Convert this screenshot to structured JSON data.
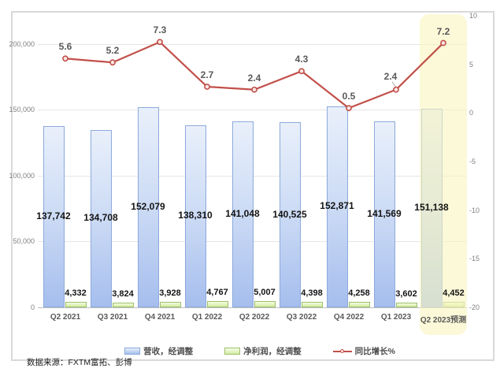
{
  "chart_data": {
    "type": "combo_bar_line",
    "categories": [
      "Q2 2021",
      "Q3 2021",
      "Q4 2021",
      "Q1 2022",
      "Q2 2022",
      "Q3 2022",
      "Q4 2022",
      "Q1 2023",
      "Q2 2023预测"
    ],
    "series": [
      {
        "name": "营收，经调整",
        "type": "bar",
        "axis": "left",
        "values": [
          137742,
          134708,
          152079,
          138310,
          141048,
          140525,
          152871,
          141569,
          151138
        ],
        "labels": [
          "137,742",
          "134,708",
          "152,079",
          "138,310",
          "141,048",
          "140,525",
          "152,871",
          "141,569",
          "151,138"
        ]
      },
      {
        "name": "净利润，经调整",
        "type": "bar",
        "axis": "left",
        "values": [
          4332,
          3824,
          3928,
          4767,
          5007,
          4398,
          4258,
          3602,
          4452
        ],
        "labels": [
          "4,332",
          "3,824",
          "3,928",
          "4,767",
          "5,007",
          "4,398",
          "4,258",
          "3,602",
          "4,452"
        ]
      },
      {
        "name": "同比增长%",
        "type": "line",
        "axis": "right",
        "values": [
          5.6,
          5.2,
          7.3,
          2.7,
          2.4,
          4.3,
          0.5,
          2.4,
          7.2
        ],
        "labels": [
          "5.6",
          "5.2",
          "7.3",
          "2.7",
          "2.4",
          "4.3",
          "0.5",
          "2.4",
          "7.2"
        ]
      }
    ],
    "left_axis": {
      "min": 0,
      "max": 221500,
      "ticks": [
        0,
        50000,
        100000,
        150000,
        200000
      ],
      "tick_labels": [
        "0",
        "50,000",
        "100,000",
        "150,000",
        "200,000"
      ]
    },
    "right_axis": {
      "min": -20,
      "max": 10,
      "ticks": [
        10,
        5,
        0,
        -5,
        -10,
        -15,
        -20
      ],
      "tick_labels": [
        "10",
        "5",
        "0",
        "-5",
        "-10",
        "-15",
        "-20"
      ]
    },
    "grid": true,
    "legend_position": "bottom",
    "highlight": {
      "category_index": 8,
      "label": "Q2 2023预测"
    },
    "source_note": "数据来源：FXTM富拓、彭博"
  },
  "colors": {
    "revenue_bar_top": "#e9f0fb",
    "revenue_bar_bottom": "#a6beee",
    "revenue_bar_border": "#8ca9dc",
    "profit_bar_top": "#f6fce8",
    "profit_bar_bottom": "#d4eda4",
    "profit_bar_border": "#9dbf6b",
    "growth_line": "#c2504a",
    "growth_marker_fill": "#f7e6e4",
    "gridline": "#e5e5e5",
    "axis_line": "#bfbfbf",
    "tick_label": "#7f7f7f",
    "category_label": "#595959",
    "bar_label": "#141414",
    "highlight_fill": "rgba(248,245,190,0.6)",
    "frame_border": "#d9d9d9"
  }
}
